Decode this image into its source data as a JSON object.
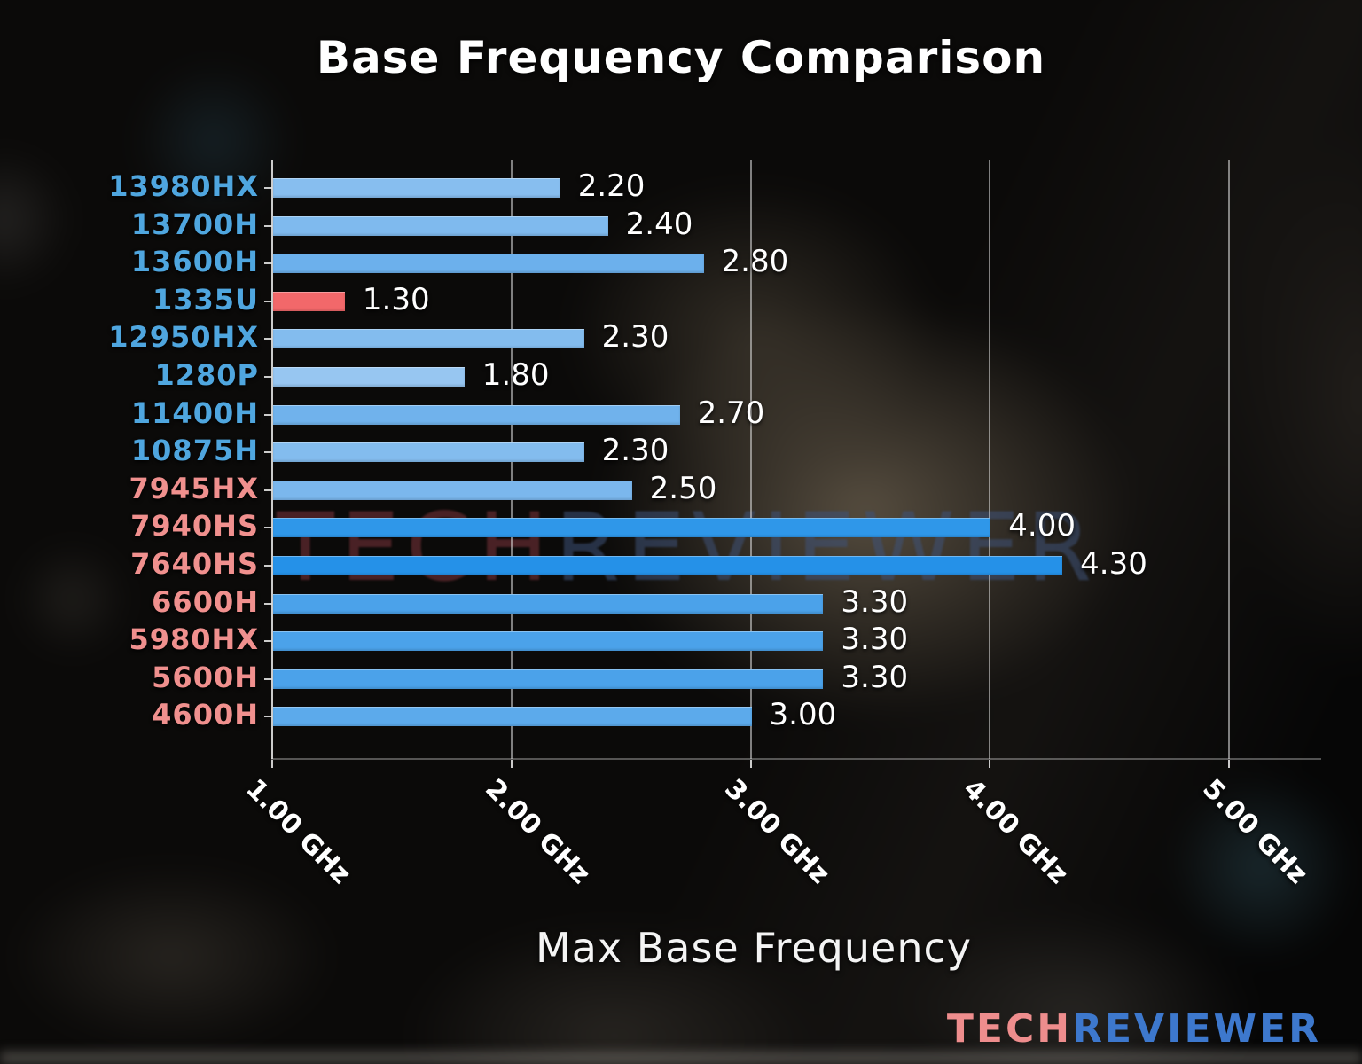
{
  "title": "Base Frequency Comparison",
  "watermark": {
    "part1": "TECH",
    "part2": "REVIEWER"
  },
  "logo": {
    "part1": "TECH",
    "part2": "REVIEWER",
    "part1_color": "#ee8d8d",
    "part2_color": "#3d78cd"
  },
  "colors": {
    "intel_label": "#4FA6DF",
    "amd_label": "#F0908E",
    "highlight_bar": "#F2686A",
    "grid": "#E1E1E1",
    "text": "#FFFFFF"
  },
  "chart_data": {
    "type": "bar",
    "orientation": "horizontal",
    "title": "Base Frequency Comparison",
    "xlabel": "Max Base Frequency",
    "ylabel": "",
    "unit": "GHz",
    "xlim": [
      1.0,
      5.39
    ],
    "grid": true,
    "legend": false,
    "highlighted_category": "1335U",
    "x_ticks": [
      {
        "value": 1.0,
        "label": "1.00 GHz"
      },
      {
        "value": 2.0,
        "label": "2.00 GHz"
      },
      {
        "value": 3.0,
        "label": "3.00 GHz"
      },
      {
        "value": 4.0,
        "label": "4.00 GHz"
      },
      {
        "value": 5.0,
        "label": "5.00 GHz"
      }
    ],
    "categories": [
      "13980HX",
      "13700H",
      "13600H",
      "1335U",
      "12950HX",
      "1280P",
      "11400H",
      "10875H",
      "7945HX",
      "7940HS",
      "7640HS",
      "6600H",
      "5980HX",
      "5600H",
      "4600H"
    ],
    "values": [
      2.2,
      2.4,
      2.8,
      1.3,
      2.3,
      1.8,
      2.7,
      2.3,
      2.5,
      4.0,
      4.3,
      3.3,
      3.3,
      3.3,
      3.0
    ],
    "bars": [
      {
        "name": "13980HX",
        "value": 2.2,
        "value_label": "2.20",
        "group": "intel",
        "bar_color": "#87BEEF",
        "name_color": "#4FA6DF"
      },
      {
        "name": "13700H",
        "value": 2.4,
        "value_label": "2.40",
        "group": "intel",
        "bar_color": "#7FBAEE",
        "name_color": "#4FA6DF"
      },
      {
        "name": "13600H",
        "value": 2.8,
        "value_label": "2.80",
        "group": "intel",
        "bar_color": "#6CB0EC",
        "name_color": "#4FA6DF"
      },
      {
        "name": "1335U",
        "value": 1.3,
        "value_label": "1.30",
        "group": "intel",
        "bar_color": "#F2686A",
        "name_color": "#4FA6DF"
      },
      {
        "name": "12950HX",
        "value": 2.3,
        "value_label": "2.30",
        "group": "intel",
        "bar_color": "#83BCEE",
        "name_color": "#4FA6DF"
      },
      {
        "name": "1280P",
        "value": 1.8,
        "value_label": "1.80",
        "group": "intel",
        "bar_color": "#97C6F1",
        "name_color": "#4FA6DF"
      },
      {
        "name": "11400H",
        "value": 2.7,
        "value_label": "2.70",
        "group": "intel",
        "bar_color": "#70B2EC",
        "name_color": "#4FA6DF"
      },
      {
        "name": "10875H",
        "value": 2.3,
        "value_label": "2.30",
        "group": "intel",
        "bar_color": "#83BCEE",
        "name_color": "#4FA6DF"
      },
      {
        "name": "7945HX",
        "value": 2.5,
        "value_label": "2.50",
        "group": "amd",
        "bar_color": "#7BB7ED",
        "name_color": "#F0908E"
      },
      {
        "name": "7940HS",
        "value": 4.0,
        "value_label": "4.00",
        "group": "amd",
        "bar_color": "#2F97E9",
        "name_color": "#F0908E"
      },
      {
        "name": "7640HS",
        "value": 4.3,
        "value_label": "4.30",
        "group": "amd",
        "bar_color": "#2591E8",
        "name_color": "#F0908E"
      },
      {
        "name": "6600H",
        "value": 3.3,
        "value_label": "3.30",
        "group": "amd",
        "bar_color": "#4BA2EA",
        "name_color": "#F0908E"
      },
      {
        "name": "5980HX",
        "value": 3.3,
        "value_label": "3.30",
        "group": "amd",
        "bar_color": "#4BA2EA",
        "name_color": "#F0908E"
      },
      {
        "name": "5600H",
        "value": 3.3,
        "value_label": "3.30",
        "group": "amd",
        "bar_color": "#4BA2EA",
        "name_color": "#F0908E"
      },
      {
        "name": "4600H",
        "value": 3.0,
        "value_label": "3.00",
        "group": "amd",
        "bar_color": "#5CAAEB",
        "name_color": "#F0908E"
      }
    ]
  }
}
